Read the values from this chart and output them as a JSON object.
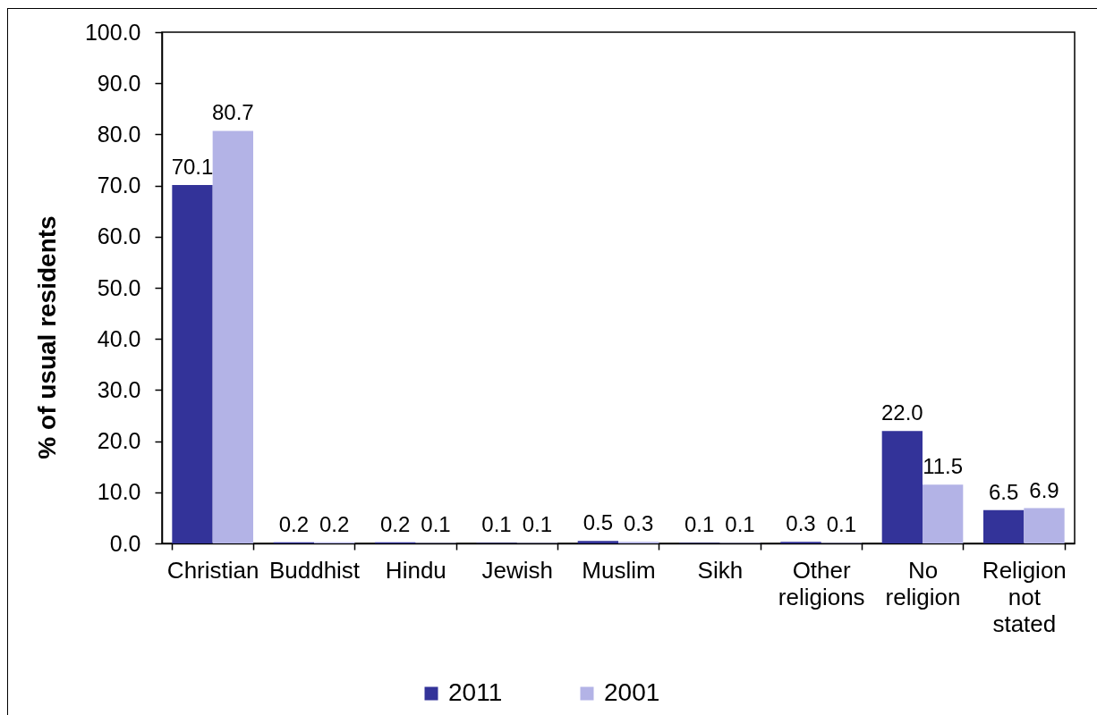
{
  "chart_data": {
    "type": "bar",
    "ylabel": "% of usual residents",
    "categories": [
      "Christian",
      "Buddhist",
      "Hindu",
      "Jewish",
      "Muslim",
      "Sikh",
      "Other religions",
      "No religion",
      "Religion not stated"
    ],
    "series": [
      {
        "name": "2011",
        "color": "#333399",
        "values": [
          70.1,
          0.2,
          0.2,
          0.1,
          0.5,
          0.1,
          0.3,
          22.0,
          6.5
        ],
        "value_labels": [
          "70.1",
          "0.2",
          "0.2",
          "0.1",
          "0.5",
          "0.1",
          "0.3",
          "22.0",
          "6.5"
        ]
      },
      {
        "name": "2001",
        "color": "#b3b3e6",
        "values": [
          80.7,
          0.2,
          0.1,
          0.1,
          0.3,
          0.1,
          0.1,
          11.5,
          6.9
        ],
        "value_labels": [
          "80.7",
          "0.2",
          "0.1",
          "0.1",
          "0.3",
          "0.1",
          "0.1",
          "11.5",
          "6.9"
        ]
      }
    ],
    "ylim": [
      0,
      100
    ],
    "yticks": [
      {
        "value": 0,
        "label": "0.0"
      },
      {
        "value": 10,
        "label": "10.0"
      },
      {
        "value": 20,
        "label": "20.0"
      },
      {
        "value": 30,
        "label": "30.0"
      },
      {
        "value": 40,
        "label": "40.0"
      },
      {
        "value": 50,
        "label": "50.0"
      },
      {
        "value": 60,
        "label": "60.0"
      },
      {
        "value": 70,
        "label": "70.0"
      },
      {
        "value": 80,
        "label": "80.0"
      },
      {
        "value": 90,
        "label": "90.0"
      },
      {
        "value": 100,
        "label": "100.0"
      }
    ],
    "grid": false,
    "legend": "bottom"
  }
}
